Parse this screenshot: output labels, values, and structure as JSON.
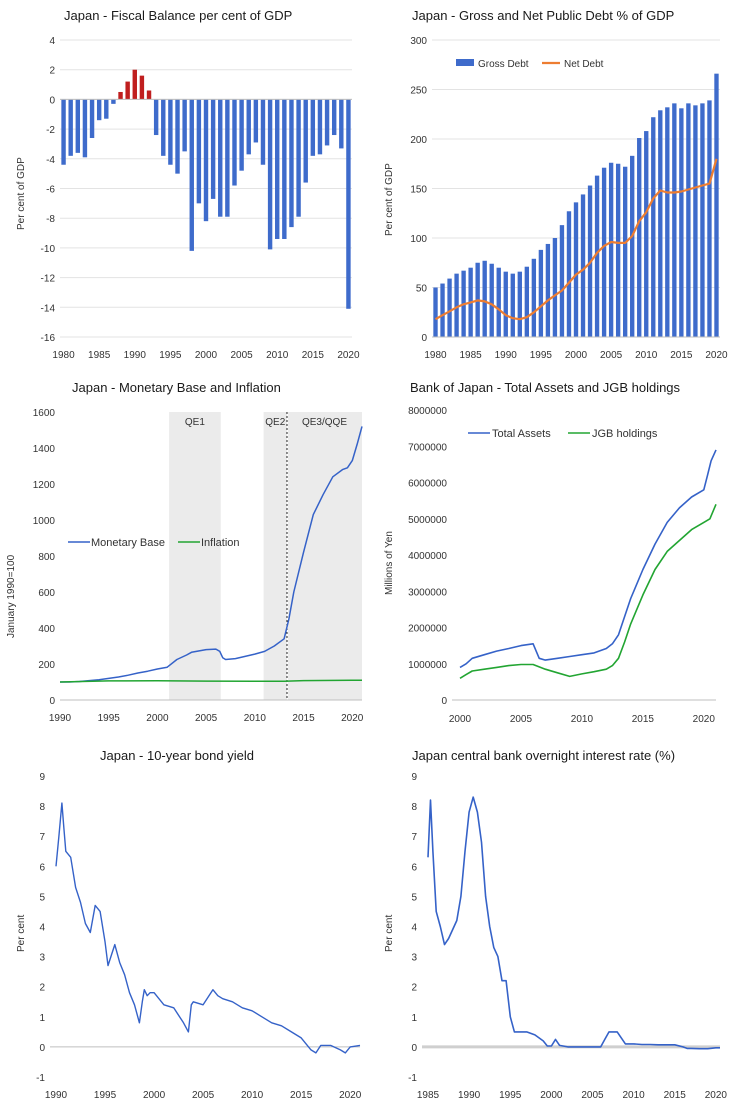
{
  "colors": {
    "bar": "#3E6BCB",
    "positive": "#C01F1F",
    "net": "#ED7D31",
    "line": "#3562C8",
    "green": "#22A532",
    "shade": "#EBEBEB",
    "axis": "#BFBFBF"
  },
  "chart_data": [
    {
      "id": "fiscal",
      "type": "bar",
      "title": "Japan - Fiscal Balance per cent of GDP",
      "ylabel": "Per cent of GDP",
      "xlabel": "",
      "ylim": [
        -16,
        4
      ],
      "yticks": [
        4,
        2,
        0,
        -2,
        -4,
        -6,
        -8,
        -10,
        -12,
        -14,
        -16
      ],
      "xticks": [
        1980,
        1985,
        1990,
        1995,
        2000,
        2005,
        2010,
        2015,
        2020
      ],
      "x": [
        1980,
        1981,
        1982,
        1983,
        1984,
        1985,
        1986,
        1987,
        1988,
        1989,
        1990,
        1991,
        1992,
        1993,
        1994,
        1995,
        1996,
        1997,
        1998,
        1999,
        2000,
        2001,
        2002,
        2003,
        2004,
        2005,
        2006,
        2007,
        2008,
        2009,
        2010,
        2011,
        2012,
        2013,
        2014,
        2015,
        2016,
        2017,
        2018,
        2019,
        2020
      ],
      "values": [
        -4.4,
        -3.8,
        -3.6,
        -3.9,
        -2.6,
        -1.4,
        -1.3,
        -0.3,
        0.5,
        1.2,
        2.0,
        1.6,
        0.6,
        -2.4,
        -3.8,
        -4.4,
        -5.0,
        -3.5,
        -10.2,
        -7.0,
        -8.2,
        -6.7,
        -7.9,
        -7.9,
        -5.8,
        -4.8,
        -3.7,
        -2.9,
        -4.4,
        -10.1,
        -9.4,
        -9.4,
        -8.6,
        -7.9,
        -5.6,
        -3.8,
        -3.7,
        -3.1,
        -2.4,
        -3.3,
        -14.1
      ]
    },
    {
      "id": "debt",
      "type": "bar",
      "title": "Japan - Gross and Net Public Debt % of GDP",
      "ylabel": "Per cent of GDP",
      "xlabel": "",
      "ylim": [
        0,
        300
      ],
      "yticks": [
        300,
        250,
        200,
        150,
        100,
        50,
        0
      ],
      "xticks": [
        1980,
        1985,
        1990,
        1995,
        2000,
        2005,
        2010,
        2015,
        2020
      ],
      "legend": "top-left",
      "x": [
        1980,
        1981,
        1982,
        1983,
        1984,
        1985,
        1986,
        1987,
        1988,
        1989,
        1990,
        1991,
        1992,
        1993,
        1994,
        1995,
        1996,
        1997,
        1998,
        1999,
        2000,
        2001,
        2002,
        2003,
        2004,
        2005,
        2006,
        2007,
        2008,
        2009,
        2010,
        2011,
        2012,
        2013,
        2014,
        2015,
        2016,
        2017,
        2018,
        2019,
        2020
      ],
      "series": [
        {
          "name": "Gross Debt",
          "values": [
            50,
            54,
            59,
            64,
            67,
            70,
            75,
            77,
            74,
            70,
            66,
            64,
            66,
            71,
            79,
            88,
            94,
            100,
            113,
            127,
            136,
            144,
            153,
            163,
            171,
            176,
            175,
            172,
            183,
            201,
            208,
            222,
            229,
            232,
            236,
            231,
            236,
            234,
            236,
            239,
            266
          ]
        },
        {
          "name": "Net Debt",
          "values": [
            18,
            22,
            26,
            30,
            33,
            35,
            37,
            36,
            33,
            28,
            22,
            19,
            18,
            20,
            25,
            31,
            37,
            42,
            47,
            55,
            63,
            68,
            75,
            85,
            92,
            96,
            95,
            95,
            102,
            117,
            126,
            140,
            148,
            146,
            146,
            147,
            149,
            151,
            153,
            155,
            180
          ]
        }
      ]
    },
    {
      "id": "monetary",
      "type": "line",
      "title": "Japan - Monetary Base and Inflation",
      "ylabel": "January 1990=100",
      "xlabel": "",
      "ylim": [
        0,
        1600
      ],
      "xlim": [
        1990,
        2021
      ],
      "yticks": [
        1600,
        1400,
        1200,
        1000,
        800,
        600,
        400,
        200,
        0
      ],
      "xticks": [
        1990,
        1995,
        2000,
        2005,
        2010,
        2015,
        2020
      ],
      "legend": "left-middle",
      "annotations": [
        {
          "label": "QE1",
          "from": 2001.2,
          "to": 2006.5
        },
        {
          "label": "QE2",
          "from": 2010.9,
          "to": 2013.3
        },
        {
          "label": "QE3/QQE",
          "from": 2013.3,
          "to": 2021
        }
      ],
      "series": [
        {
          "name": "Monetary Base",
          "x": [
            1990,
            1991,
            1992,
            1993,
            1994,
            1995,
            1996,
            1997,
            1998,
            1999,
            2000,
            2001,
            2002,
            2003,
            2003.5,
            2004,
            2005,
            2006,
            2006.4,
            2006.7,
            2007,
            2008,
            2009,
            2010,
            2011,
            2012,
            2013,
            2013.5,
            2014,
            2015,
            2016,
            2017,
            2018,
            2019,
            2019.5,
            2020,
            2020.5,
            2021
          ],
          "values": [
            100,
            100,
            103,
            108,
            113,
            120,
            128,
            138,
            150,
            160,
            172,
            182,
            225,
            250,
            265,
            270,
            280,
            283,
            270,
            235,
            225,
            230,
            242,
            255,
            270,
            300,
            340,
            450,
            600,
            820,
            1030,
            1140,
            1240,
            1280,
            1290,
            1330,
            1420,
            1520
          ]
        },
        {
          "name": "Inflation",
          "x": [
            1990,
            1995,
            2000,
            2005,
            2010,
            2013,
            2015,
            2020,
            2021
          ],
          "values": [
            100,
            106,
            107,
            105,
            104,
            104,
            108,
            110,
            110
          ]
        }
      ]
    },
    {
      "id": "boj",
      "type": "line",
      "title": "Bank of Japan - Total Assets and JGB holdings",
      "ylabel": "Millions of Yen",
      "xlabel": "",
      "ylim": [
        0,
        8000000
      ],
      "xlim": [
        2000,
        2021
      ],
      "yticks": [
        "8000000",
        "7000000",
        "6000000",
        "5000000",
        "4000000",
        "3000000",
        "2000000",
        "1000000",
        "0"
      ],
      "xticks": [
        2000,
        2005,
        2010,
        2015,
        2020
      ],
      "legend": "top-left",
      "series": [
        {
          "name": "Total Assets",
          "x": [
            2000,
            2000.5,
            2001,
            2002,
            2003,
            2004,
            2005,
            2006,
            2006.5,
            2007,
            2008,
            2009,
            2010,
            2011,
            2012,
            2012.5,
            2013,
            2013.5,
            2014,
            2015,
            2016,
            2017,
            2018,
            2019,
            2020,
            2020.3,
            2020.6,
            2021
          ],
          "values": [
            900000,
            1000000,
            1150000,
            1250000,
            1350000,
            1420000,
            1500000,
            1550000,
            1150000,
            1100000,
            1150000,
            1200000,
            1250000,
            1300000,
            1420000,
            1550000,
            1800000,
            2300000,
            2800000,
            3600000,
            4300000,
            4900000,
            5300000,
            5600000,
            5800000,
            6200000,
            6600000,
            6900000
          ]
        },
        {
          "name": "JGB holdings",
          "x": [
            2000,
            2000.5,
            2001,
            2002,
            2003,
            2004,
            2005,
            2006,
            2007,
            2008,
            2009,
            2010,
            2011,
            2012,
            2012.5,
            2013,
            2013.5,
            2014,
            2015,
            2016,
            2017,
            2018,
            2019,
            2020,
            2020.5,
            2021
          ],
          "values": [
            600000,
            700000,
            800000,
            850000,
            900000,
            950000,
            980000,
            980000,
            850000,
            750000,
            650000,
            720000,
            780000,
            850000,
            950000,
            1150000,
            1600000,
            2100000,
            2900000,
            3600000,
            4100000,
            4400000,
            4700000,
            4900000,
            5000000,
            5400000
          ]
        }
      ]
    },
    {
      "id": "yield10",
      "type": "line",
      "title": "Japan - 10-year bond yield",
      "ylabel": "Per cent",
      "xlabel": "",
      "ylim": [
        -1,
        9
      ],
      "xlim": [
        1990,
        2021
      ],
      "yticks": [
        9,
        8,
        7,
        6,
        5,
        4,
        3,
        2,
        1,
        0,
        -1
      ],
      "xticks": [
        1990,
        1995,
        2000,
        2005,
        2010,
        2015,
        2020
      ],
      "series": [
        {
          "name": "10-year bond yield",
          "x": [
            1990,
            1990.3,
            1990.6,
            1990.8,
            1991,
            1991.5,
            1992,
            1992.5,
            1993,
            1993.5,
            1994,
            1994.5,
            1995,
            1995.3,
            1995.6,
            1996,
            1996.5,
            1997,
            1997.5,
            1998,
            1998.5,
            1998.8,
            1999,
            1999.3,
            1999.6,
            2000,
            2001,
            2002,
            2003,
            2003.5,
            2003.8,
            2004,
            2005,
            2006,
            2006.5,
            2007,
            2008,
            2009,
            2010,
            2011,
            2012,
            2013,
            2014,
            2015,
            2016,
            2016.5,
            2017,
            2018,
            2019,
            2019.5,
            2020,
            2021
          ],
          "values": [
            6.0,
            7.0,
            8.1,
            7.3,
            6.5,
            6.3,
            5.3,
            4.8,
            4.1,
            3.8,
            4.7,
            4.5,
            3.5,
            2.7,
            3.0,
            3.4,
            2.8,
            2.4,
            1.8,
            1.4,
            0.8,
            1.5,
            1.9,
            1.7,
            1.8,
            1.8,
            1.4,
            1.3,
            0.8,
            0.5,
            1.4,
            1.5,
            1.4,
            1.9,
            1.7,
            1.6,
            1.5,
            1.3,
            1.2,
            1.0,
            0.8,
            0.7,
            0.5,
            0.3,
            -0.1,
            -0.2,
            0.05,
            0.05,
            -0.1,
            -0.2,
            0.0,
            0.05
          ]
        }
      ]
    },
    {
      "id": "overnight",
      "type": "line",
      "title": "Japan central bank overnight interest rate (%)",
      "ylabel": "Per cent",
      "xlabel": "",
      "ylim": [
        -1,
        9
      ],
      "xlim": [
        1985,
        2020.5
      ],
      "yticks": [
        9,
        8,
        7,
        6,
        5,
        4,
        3,
        2,
        1,
        0,
        -1
      ],
      "xticks": [
        1985,
        1990,
        1995,
        2000,
        2005,
        2010,
        2015,
        2020
      ],
      "series": [
        {
          "name": "Overnight rate",
          "x": [
            1985,
            1985.3,
            1985.6,
            1986,
            1986.5,
            1987,
            1987.5,
            1988,
            1988.5,
            1989,
            1989.5,
            1990,
            1990.5,
            1991,
            1991.5,
            1992,
            1992.5,
            1993,
            1993.5,
            1994,
            1994.5,
            1995,
            1995.5,
            1996,
            1997,
            1998,
            1999,
            1999.5,
            2000,
            2000.5,
            2001,
            2002,
            2003,
            2004,
            2005,
            2006,
            2006.5,
            2007,
            2008,
            2008.5,
            2009,
            2010,
            2011,
            2012,
            2013,
            2014,
            2015,
            2016,
            2016.5,
            2017,
            2018,
            2019,
            2020,
            2020.5
          ],
          "values": [
            6.3,
            8.2,
            6.5,
            4.5,
            4.0,
            3.4,
            3.6,
            3.9,
            4.2,
            5.0,
            6.5,
            7.8,
            8.3,
            7.8,
            6.8,
            5.0,
            4.0,
            3.3,
            3.0,
            2.2,
            2.2,
            1.0,
            0.5,
            0.5,
            0.5,
            0.4,
            0.2,
            0.03,
            0.03,
            0.25,
            0.05,
            0.0,
            0.0,
            0.0,
            0.0,
            0.0,
            0.25,
            0.5,
            0.5,
            0.3,
            0.1,
            0.1,
            0.08,
            0.08,
            0.07,
            0.07,
            0.07,
            0.0,
            -0.05,
            -0.05,
            -0.06,
            -0.06,
            -0.03,
            -0.03
          ]
        }
      ]
    }
  ]
}
